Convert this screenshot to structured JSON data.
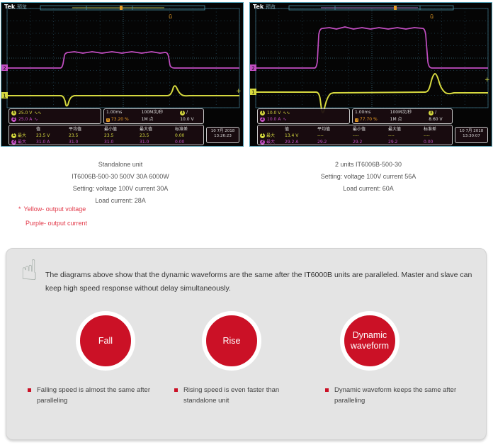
{
  "colors": {
    "accent_red": "#cb1126",
    "trace_yellow": "#d6d93f",
    "trace_purple": "#c24ec2",
    "trigger_orange": "#e59a24",
    "scope_border": "#4f9cb1",
    "note_red": "#e23a4a"
  },
  "icons": {
    "hand": "☝"
  },
  "scopes": [
    {
      "brand": "Tek",
      "mode": "预览",
      "trigger_marker": "ū",
      "plus_marker": "+",
      "channels": [
        {
          "num": "1",
          "scale": "25.0 V",
          "coupling": "∿∿"
        },
        {
          "num": "2",
          "scale": "25.0 A",
          "coupling": "∿"
        }
      ],
      "timebase": "1.00ms",
      "sample_rate": "100M次/秒",
      "trigger_pos": "73.20 %",
      "record_length": "1M 点",
      "trig_ch": "1",
      "trig_slope": "/",
      "trig_level": "10.0 V",
      "meas_headers": [
        "值",
        "平均值",
        "最小值",
        "最大值",
        "标准差"
      ],
      "meas_rows": [
        {
          "ch": "1",
          "label": "最大",
          "value": "23.5 V",
          "avg": "23.5",
          "min": "23.5",
          "max": "23.5",
          "std": "0.00"
        },
        {
          "ch": "2",
          "label": "最大",
          "value": "31.0 A",
          "avg": "31.0",
          "min": "31.0",
          "max": "31.0",
          "std": "0.00"
        }
      ],
      "date": "10 7月 2018",
      "time": "13:26:23"
    },
    {
      "brand": "Tek",
      "mode": "预览",
      "trigger_marker": "ū",
      "plus_marker": "+",
      "channels": [
        {
          "num": "1",
          "scale": "10.0 V",
          "coupling": "∿∿"
        },
        {
          "num": "2",
          "scale": "10.0 A",
          "coupling": "∿"
        }
      ],
      "timebase": "1.00ms",
      "sample_rate": "100M次/秒",
      "trigger_pos": "77.70 %",
      "record_length": "1M 点",
      "trig_ch": "1",
      "trig_slope": "/",
      "trig_level": "8.60 V",
      "meas_headers": [
        "值",
        "平均值",
        "最小值",
        "最大值",
        "标准差"
      ],
      "meas_rows": [
        {
          "ch": "1",
          "label": "最大",
          "value": "13.4 V",
          "avg": "----",
          "min": "----",
          "max": "----",
          "std": "----"
        },
        {
          "ch": "2",
          "label": "最大",
          "value": "29.2 A",
          "avg": "29.2",
          "min": "29.2",
          "max": "29.2",
          "std": "0.00"
        }
      ],
      "date": "10 7月 2018",
      "time": "13:30:07"
    }
  ],
  "captions": [
    {
      "lines": [
        "Standalone unit",
        "IT6006B-500-30  500V 30A 6000W",
        "Setting: voltage 100V current 30A",
        "Load current: 28A"
      ]
    },
    {
      "lines": [
        "2 units IT6006B-500-30",
        "Setting: voltage 100V current 56A",
        "Load current: 60A"
      ]
    }
  ],
  "legend_notes": [
    {
      "marker": "*",
      "text": "Yellow- output voltage"
    },
    {
      "marker": "",
      "text": "Purple- output current"
    }
  ],
  "summary_panel": {
    "paragraph": "The diagrams above show that the dynamic waveforms are the same after the IT6000B units are paralleled. Master and slave can keep high speed response without delay simultaneously.",
    "badges": [
      "Fall",
      "Rise",
      "Dynamic waveform"
    ],
    "bullets": [
      "Falling speed is almost the same after paralleling",
      "Rising speed is even faster than standalone unit",
      "Dynamic waveform keeps the same after paralleling"
    ]
  }
}
